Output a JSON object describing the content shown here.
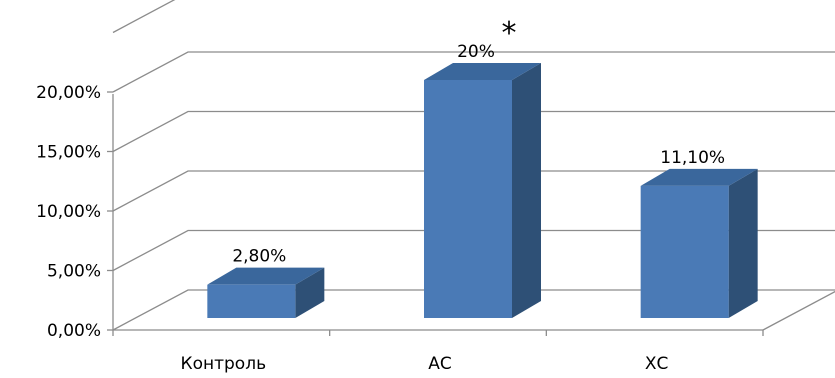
{
  "chart_data": {
    "type": "bar",
    "style": "3d-column",
    "categories": [
      "Контроль",
      "АС",
      "ХС"
    ],
    "values": [
      2.8,
      20,
      11.1
    ],
    "data_labels": [
      "2,80%",
      "20%",
      "11,10%"
    ],
    "y_tick_labels": [
      "0,00%",
      "5,00%",
      "10,00%",
      "15,00%",
      "20,00%"
    ],
    "y_tick_values": [
      0,
      5,
      10,
      15,
      20
    ],
    "ylim": [
      0,
      25
    ],
    "grid": true,
    "legend": "none",
    "annotations": [
      {
        "category": "АС",
        "text": "*"
      }
    ],
    "colors": {
      "bar_front": "#4a7ab6",
      "bar_side": "#2e5076",
      "bar_top": "#3a679c",
      "grid": "#8c8c8c"
    }
  }
}
